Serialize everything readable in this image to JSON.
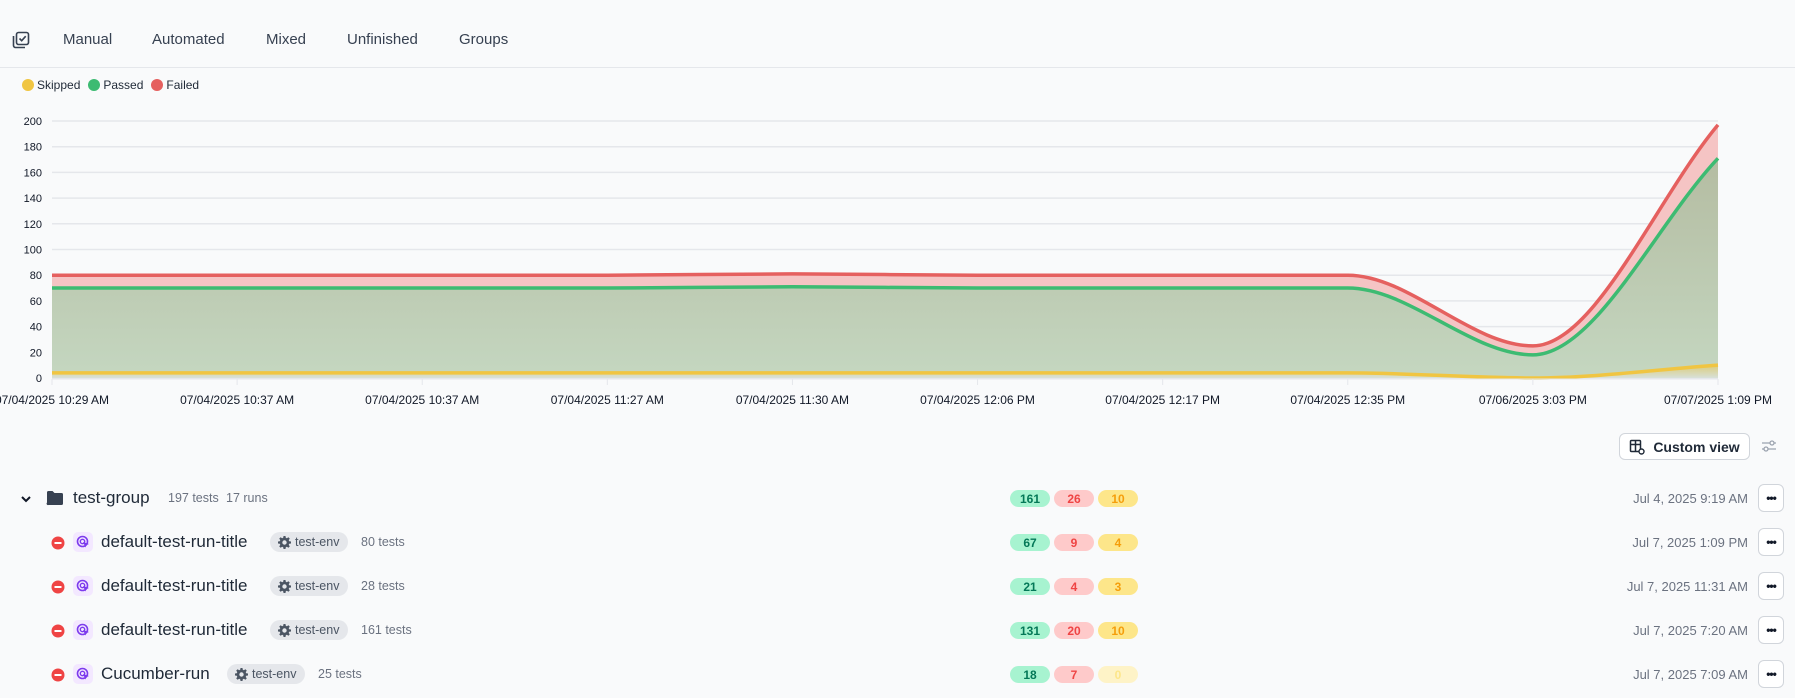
{
  "tabs": {
    "icon": "checklist-icon",
    "items": [
      {
        "label": "Manual"
      },
      {
        "label": "Automated"
      },
      {
        "label": "Mixed"
      },
      {
        "label": "Unfinished"
      },
      {
        "label": "Groups"
      }
    ]
  },
  "legend": [
    {
      "label": "Skipped",
      "color": "#f0c542"
    },
    {
      "label": "Passed",
      "color": "#3dbb72"
    },
    {
      "label": "Failed",
      "color": "#e5605f"
    }
  ],
  "chart_data": {
    "type": "area",
    "stacked": true,
    "x": [
      "07/04/2025 10:29 AM",
      "07/04/2025 10:37 AM",
      "07/04/2025 10:37 AM",
      "07/04/2025 11:27 AM",
      "07/04/2025 11:30 AM",
      "07/04/2025 12:06 PM",
      "07/04/2025 12:17 PM",
      "07/04/2025 12:35 PM",
      "07/06/2025 3:03 PM",
      "07/07/2025 1:09 PM"
    ],
    "series": [
      {
        "name": "Skipped",
        "color": "#f0c542",
        "values": [
          4,
          4,
          4,
          4,
          4,
          4,
          4,
          4,
          0,
          10
        ]
      },
      {
        "name": "Passed",
        "color": "#3dbb72",
        "values": [
          66,
          66,
          66,
          66,
          67,
          66,
          66,
          66,
          18,
          161
        ]
      },
      {
        "name": "Failed",
        "color": "#e5605f",
        "values": [
          10,
          10,
          10,
          10,
          10,
          10,
          10,
          10,
          7,
          26
        ]
      }
    ],
    "yticks": [
      0,
      20,
      40,
      60,
      80,
      100,
      120,
      140,
      160,
      180,
      200
    ],
    "ylim": [
      0,
      200
    ],
    "grid": true,
    "legend": "top-left"
  },
  "toolbar": {
    "custom_view_label": "Custom view",
    "custom_view_icon": "table-settings-icon",
    "filter_icon": "sliders-icon"
  },
  "group": {
    "name": "test-group",
    "tests": "197 tests",
    "runs": "17 runs",
    "passed": "161",
    "failed": "26",
    "skipped": "10",
    "date": "Jul 4, 2025 9:19 AM"
  },
  "runs": [
    {
      "name": "default-test-run-title",
      "env": "test-env",
      "tests": "80 tests",
      "passed": "67",
      "failed": "9",
      "skipped": "4",
      "date": "Jul 7, 2025 1:09 PM"
    },
    {
      "name": "default-test-run-title",
      "env": "test-env",
      "tests": "28 tests",
      "passed": "21",
      "failed": "4",
      "skipped": "3",
      "date": "Jul 7, 2025 11:31 AM"
    },
    {
      "name": "default-test-run-title",
      "env": "test-env",
      "tests": "161 tests",
      "passed": "131",
      "failed": "20",
      "skipped": "10",
      "date": "Jul 7, 2025 7:20 AM"
    },
    {
      "name": "Cucumber-run",
      "env": "test-env",
      "tests": "25 tests",
      "passed": "18",
      "failed": "7",
      "skipped": "0",
      "date": "Jul 7, 2025 7:09 AM"
    }
  ],
  "more_label": "•••"
}
